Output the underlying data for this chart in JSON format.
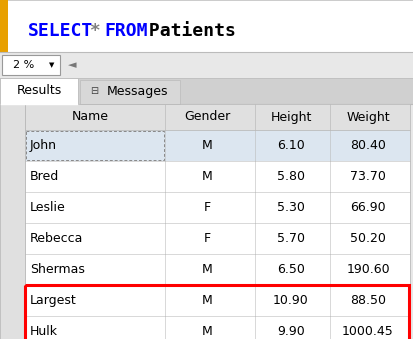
{
  "sql_keyword_color": "#0000FF",
  "sql_star_color": "#808080",
  "sql_text_color": "#000000",
  "zoom_text": "2 %",
  "tab_results": "Results",
  "tab_messages": "Messages",
  "columns": [
    "Name",
    "Gender",
    "Height",
    "Weight"
  ],
  "rows": [
    [
      "John",
      "M",
      "6.10",
      "80.40"
    ],
    [
      "Bred",
      "M",
      "5.80",
      "73.70"
    ],
    [
      "Leslie",
      "F",
      "5.30",
      "66.90"
    ],
    [
      "Rebecca",
      "F",
      "5.70",
      "50.20"
    ],
    [
      "Shermas",
      "M",
      "6.50",
      "190.60"
    ],
    [
      "Largest",
      "M",
      "10.90",
      "88.50"
    ],
    [
      "Hulk",
      "M",
      "9.90",
      "1000.45"
    ]
  ],
  "highlighted_rows": [
    5,
    6
  ],
  "bg_color": "#E8E8E8",
  "cell_bg_white": "#FFFFFF",
  "john_bg": "#DCE6F0",
  "grid_color": "#BBBBBB",
  "text_color": "#000000",
  "sql_area_bg": "#FFFFFF",
  "tab_active_bg": "#FFFFFF",
  "tab_inactive_bg": "#D8D8D8",
  "tab_bar_bg": "#D0D0D0",
  "highlight_border": "#FF0000",
  "yellow_bar_color": "#E8A000",
  "header_bg": "#E0E0E0",
  "row_num_bg": "#E0E0E0",
  "sql_font_size": 13,
  "table_font_size": 9,
  "tab_font_size": 9,
  "toolbar_font_size": 8
}
